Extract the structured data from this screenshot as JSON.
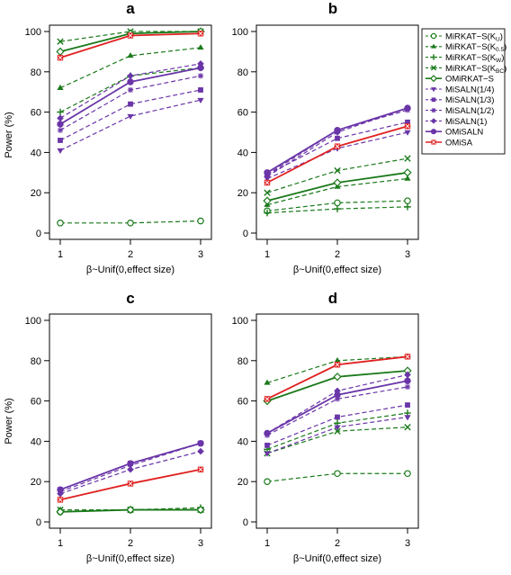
{
  "colors": {
    "MiRKAT": "#1a7a1a",
    "MiSALN": "#6a35a8",
    "OMiRKAT": "#1a7a1a",
    "OMiSALN": "#6a35a8",
    "OMiSA": "#e02020"
  },
  "legend": {
    "entries": [
      {
        "label": "MiRKAT−S(K",
        "sub": "U",
        "tail": ")",
        "color": "#1a7a1a",
        "dash": true,
        "marker": "circle-open"
      },
      {
        "label": "MiRKAT−S(K",
        "sub": "0.5",
        "tail": ")",
        "color": "#1a7a1a",
        "dash": true,
        "marker": "triangle-up-filled"
      },
      {
        "label": "MiRKAT−S(K",
        "sub": "W",
        "tail": ")",
        "color": "#1a7a1a",
        "dash": true,
        "marker": "plus"
      },
      {
        "label": "MiRKAT−S(K",
        "sub": "BC",
        "tail": ")",
        "color": "#1a7a1a",
        "dash": true,
        "marker": "x"
      },
      {
        "label": "OMiRKAT−S",
        "sub": "",
        "tail": "",
        "color": "#1a7a1a",
        "dash": false,
        "marker": "diamond-open"
      },
      {
        "label": "MiSALN(1/4)",
        "sub": "",
        "tail": "",
        "color": "#6a35a8",
        "dash": true,
        "marker": "triangle-down-filled"
      },
      {
        "label": "MiSALN(1/3)",
        "sub": "",
        "tail": "",
        "color": "#6a35a8",
        "dash": true,
        "marker": "square-filled"
      },
      {
        "label": "MiSALN(1/2)",
        "sub": "",
        "tail": "",
        "color": "#6a35a8",
        "dash": true,
        "marker": "asterisk"
      },
      {
        "label": "MiSALN(1)",
        "sub": "",
        "tail": "",
        "color": "#6a35a8",
        "dash": true,
        "marker": "diamond-filled"
      },
      {
        "label": "OMiSALN",
        "sub": "",
        "tail": "",
        "color": "#6a35a8",
        "dash": false,
        "marker": "circle-filled"
      },
      {
        "label": "OMiSA",
        "sub": "",
        "tail": "",
        "color": "#e02020",
        "dash": false,
        "marker": "square-x"
      }
    ]
  },
  "chart_data": [
    {
      "panel": "a",
      "type": "line",
      "x": [
        1,
        2,
        3
      ],
      "xlabel": "β~Unif(0,effect size)",
      "ylabel": "Power (%)",
      "ylim": [
        0,
        100
      ],
      "yticks": [
        0,
        20,
        40,
        60,
        80,
        100
      ],
      "series": [
        {
          "name": "MiRKAT−S(KU)",
          "values": [
            5,
            5,
            6
          ]
        },
        {
          "name": "MiRKAT−S(K0.5)",
          "values": [
            72,
            88,
            92
          ]
        },
        {
          "name": "MiRKAT−S(KW)",
          "values": [
            60,
            78,
            82
          ]
        },
        {
          "name": "MiRKAT−S(KBC)",
          "values": [
            95,
            100,
            100
          ]
        },
        {
          "name": "OMiRKAT−S",
          "values": [
            90,
            99,
            100
          ]
        },
        {
          "name": "MiSALN(1/4)",
          "values": [
            41,
            58,
            66
          ]
        },
        {
          "name": "MiSALN(1/3)",
          "values": [
            46,
            64,
            71
          ]
        },
        {
          "name": "MiSALN(1/2)",
          "values": [
            51,
            71,
            78
          ]
        },
        {
          "name": "MiSALN(1)",
          "values": [
            57,
            78,
            84
          ]
        },
        {
          "name": "OMiSALN",
          "values": [
            54,
            75,
            82
          ]
        },
        {
          "name": "OMiSA",
          "values": [
            87,
            98,
            99
          ]
        }
      ]
    },
    {
      "panel": "b",
      "type": "line",
      "x": [
        1,
        2,
        3
      ],
      "xlabel": "β~Unif(0,effect size)",
      "ylabel": "",
      "ylim": [
        0,
        100
      ],
      "yticks": [
        0,
        20,
        40,
        60,
        80,
        100
      ],
      "series": [
        {
          "name": "MiRKAT−S(KU)",
          "values": [
            11,
            15,
            16
          ]
        },
        {
          "name": "MiRKAT−S(K0.5)",
          "values": [
            14,
            23,
            27
          ]
        },
        {
          "name": "MiRKAT−S(KW)",
          "values": [
            10,
            12,
            13
          ]
        },
        {
          "name": "MiRKAT−S(KBC)",
          "values": [
            20,
            31,
            37
          ]
        },
        {
          "name": "OMiRKAT−S",
          "values": [
            16,
            25,
            30
          ]
        },
        {
          "name": "MiSALN(1/4)",
          "values": [
            27,
            42,
            50
          ]
        },
        {
          "name": "MiSALN(1/3)",
          "values": [
            29,
            47,
            55
          ]
        },
        {
          "name": "MiSALN(1/2)",
          "values": [
            29,
            51,
            61
          ]
        },
        {
          "name": "MiSALN(1)",
          "values": [
            28,
            50,
            62
          ]
        },
        {
          "name": "OMiSALN",
          "values": [
            30,
            51,
            62
          ]
        },
        {
          "name": "OMiSA",
          "values": [
            25,
            43,
            53
          ]
        }
      ]
    },
    {
      "panel": "c",
      "type": "line",
      "x": [
        1,
        2,
        3
      ],
      "xlabel": "β~Unif(0,effect size)",
      "ylabel": "Power (%)",
      "ylim": [
        0,
        100
      ],
      "yticks": [
        0,
        20,
        40,
        60,
        80,
        100
      ],
      "series": [
        {
          "name": "MiRKAT−S(KU)",
          "values": [
            5,
            6,
            6
          ]
        },
        {
          "name": "MiRKAT−S(K0.5)",
          "values": [
            6,
            6,
            6
          ]
        },
        {
          "name": "MiRKAT−S(KW)",
          "values": [
            5,
            6,
            7
          ]
        },
        {
          "name": "MiRKAT−S(KBC)",
          "values": [
            6,
            6,
            6
          ]
        },
        {
          "name": "OMiRKAT−S",
          "values": [
            5,
            6,
            6
          ]
        },
        {
          "name": "MiSALN(1/4)",
          "values": [
            15,
            28,
            39
          ]
        },
        {
          "name": "MiSALN(1/3)",
          "values": [
            16,
            29,
            39
          ]
        },
        {
          "name": "MiSALN(1/2)",
          "values": [
            16,
            29,
            39
          ]
        },
        {
          "name": "MiSALN(1)",
          "values": [
            14,
            26,
            35
          ]
        },
        {
          "name": "OMiSALN",
          "values": [
            16,
            29,
            39
          ]
        },
        {
          "name": "OMiSA",
          "values": [
            11,
            19,
            26
          ]
        }
      ]
    },
    {
      "panel": "d",
      "type": "line",
      "x": [
        1,
        2,
        3
      ],
      "xlabel": "β~Unif(0,effect size)",
      "ylabel": "",
      "ylim": [
        0,
        100
      ],
      "yticks": [
        0,
        20,
        40,
        60,
        80,
        100
      ],
      "series": [
        {
          "name": "MiRKAT−S(KU)",
          "values": [
            20,
            24,
            24
          ]
        },
        {
          "name": "MiRKAT−S(K0.5)",
          "values": [
            69,
            80,
            82
          ]
        },
        {
          "name": "MiRKAT−S(KW)",
          "values": [
            36,
            49,
            54
          ]
        },
        {
          "name": "MiRKAT−S(KBC)",
          "values": [
            34,
            45,
            47
          ]
        },
        {
          "name": "OMiRKAT−S",
          "values": [
            60,
            72,
            75
          ]
        },
        {
          "name": "MiSALN(1/4)",
          "values": [
            34,
            47,
            52
          ]
        },
        {
          "name": "MiSALN(1/3)",
          "values": [
            38,
            52,
            58
          ]
        },
        {
          "name": "MiSALN(1/2)",
          "values": [
            43,
            61,
            67
          ]
        },
        {
          "name": "MiSALN(1)",
          "values": [
            44,
            65,
            73
          ]
        },
        {
          "name": "OMiSALN",
          "values": [
            44,
            63,
            70
          ]
        },
        {
          "name": "OMiSA",
          "values": [
            61,
            78,
            82
          ]
        }
      ]
    }
  ]
}
